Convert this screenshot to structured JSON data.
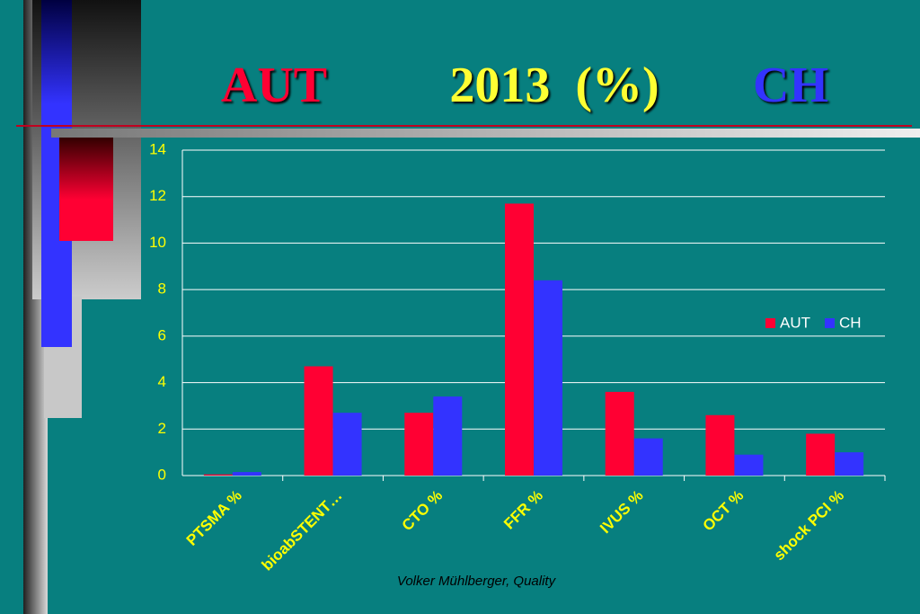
{
  "chart_data": {
    "type": "bar",
    "title_parts": [
      "AUT",
      "2013  (%)",
      "CH"
    ],
    "categories": [
      "PTSMA %",
      "bioabSTENT…",
      "CTO %",
      "FFR %",
      "IVUS %",
      "OCT %",
      "shock PCI %"
    ],
    "series": [
      {
        "name": "AUT",
        "color": "#ff0033",
        "values": [
          0.05,
          4.7,
          2.7,
          11.7,
          3.6,
          2.6,
          1.8
        ]
      },
      {
        "name": "CH",
        "color": "#3333ff",
        "values": [
          0.15,
          2.7,
          3.4,
          8.4,
          1.6,
          0.9,
          1.0
        ]
      }
    ],
    "ylim": [
      0,
      14
    ],
    "yticks": [
      0,
      2,
      4,
      6,
      8,
      10,
      12,
      14
    ],
    "grid": true,
    "legend": "right",
    "footer": "Volker Mühlberger, Quality"
  }
}
